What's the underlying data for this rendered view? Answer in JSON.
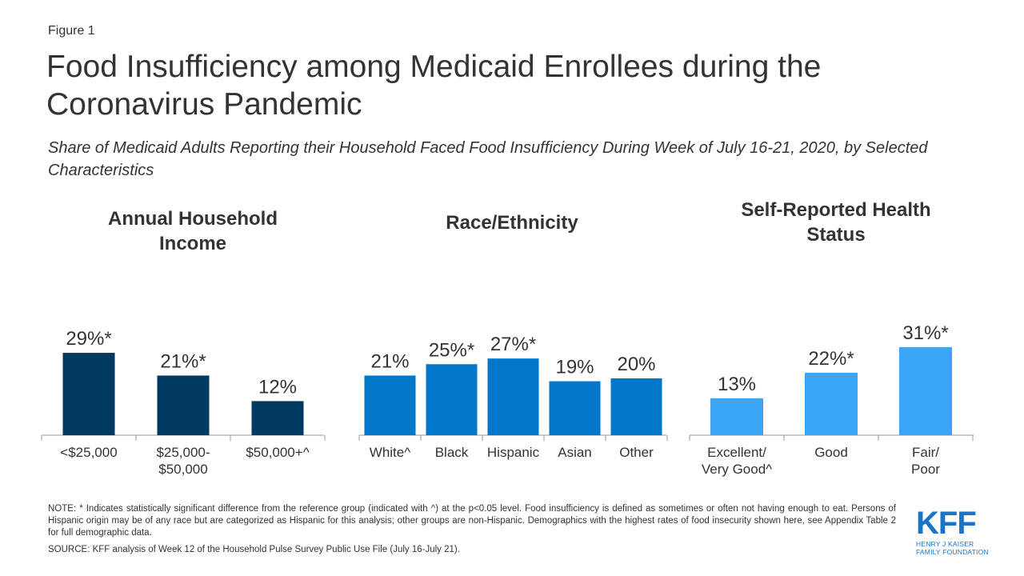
{
  "header": {
    "figure_label": "Figure 1",
    "title": "Food Insufficiency among Medicaid Enrollees during the Coronavirus Pandemic",
    "subtitle": "Share of Medicaid Adults Reporting their Household Faced Food Insufficiency During Week of July 16-21, 2020, by Selected Characteristics"
  },
  "chart_data": [
    {
      "type": "bar",
      "title": "Annual Household Income",
      "categories": [
        "<$25,000",
        "$25,000-\n$50,000",
        "$50,000+^"
      ],
      "values": [
        29,
        21,
        12
      ],
      "data_labels": [
        "29%*",
        "21%*",
        "12%"
      ],
      "color": "#003a63",
      "ylim": [
        0,
        40
      ]
    },
    {
      "type": "bar",
      "title": "Race/Ethnicity",
      "categories": [
        "White^",
        "Black",
        "Hispanic",
        "Asian",
        "Other"
      ],
      "values": [
        21,
        25,
        27,
        19,
        20
      ],
      "data_labels": [
        "21%",
        "25%*",
        "27%*",
        "19%",
        "20%"
      ],
      "color": "#0077c8",
      "ylim": [
        0,
        40
      ]
    },
    {
      "type": "bar",
      "title": "Self-Reported Health Status",
      "categories": [
        "Excellent/\nVery Good^",
        "Good",
        "Fair/\nPoor"
      ],
      "values": [
        13,
        22,
        31
      ],
      "data_labels": [
        "13%",
        "22%*",
        "31%*"
      ],
      "color": "#3ba6f5",
      "ylim": [
        0,
        40
      ]
    }
  ],
  "footer": {
    "note": "NOTE: * Indicates statistically significant difference from the reference group (indicated with ^) at the p<0.05 level. Food insufficiency is defined as sometimes or often not having enough to eat. Persons of Hispanic origin may be of any race but are categorized as Hispanic for this analysis; other groups are non-Hispanic. Demographics with the highest rates of food insecurity shown here, see Appendix Table 2 for full demographic data.",
    "source": "SOURCE: KFF analysis of Week 12 of the Household Pulse Survey Public Use File (July 16-July 21)."
  },
  "logo": {
    "main": "KFF",
    "line1": "HENRY J KAISER",
    "line2": "FAMILY FOUNDATION"
  }
}
